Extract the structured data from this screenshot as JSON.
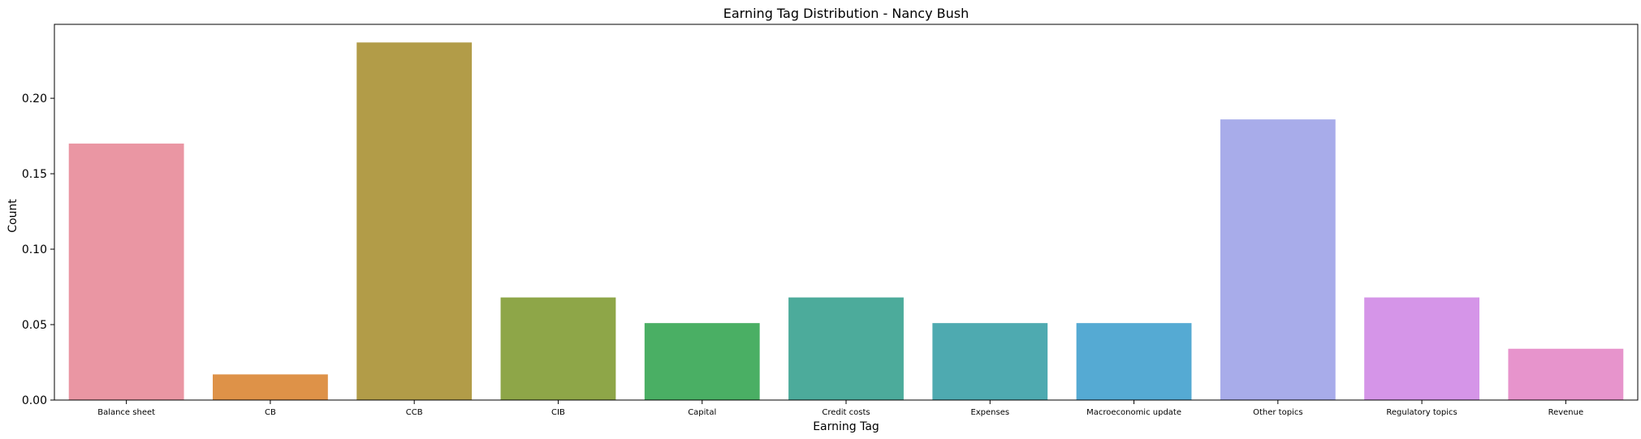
{
  "chart_data": {
    "type": "bar",
    "title": "Earning Tag Distribution - Nancy Bush",
    "xlabel": "Earning Tag",
    "ylabel": "Count",
    "categories": [
      "Balance sheet",
      "CB",
      "CCB",
      "CIB",
      "Capital",
      "Credit costs",
      "Expenses",
      "Macroeconomic update",
      "Other topics",
      "Regulatory topics",
      "Revenue"
    ],
    "values": [
      0.17,
      0.017,
      0.237,
      0.068,
      0.051,
      0.068,
      0.051,
      0.051,
      0.186,
      0.068,
      0.034
    ],
    "colors": [
      "#ea96a3",
      "#de9248",
      "#b29c48",
      "#8ea648",
      "#4aaf64",
      "#4cab9b",
      "#4eaab0",
      "#55aad3",
      "#a8acea",
      "#d595e8",
      "#e794cc"
    ],
    "ylim": [
      0,
      0.249
    ],
    "yticks": [
      0.0,
      0.05,
      0.1,
      0.15,
      0.2
    ],
    "ytick_labels": [
      "0.00",
      "0.05",
      "0.10",
      "0.15",
      "0.20"
    ],
    "grid": false,
    "legend": "none"
  }
}
